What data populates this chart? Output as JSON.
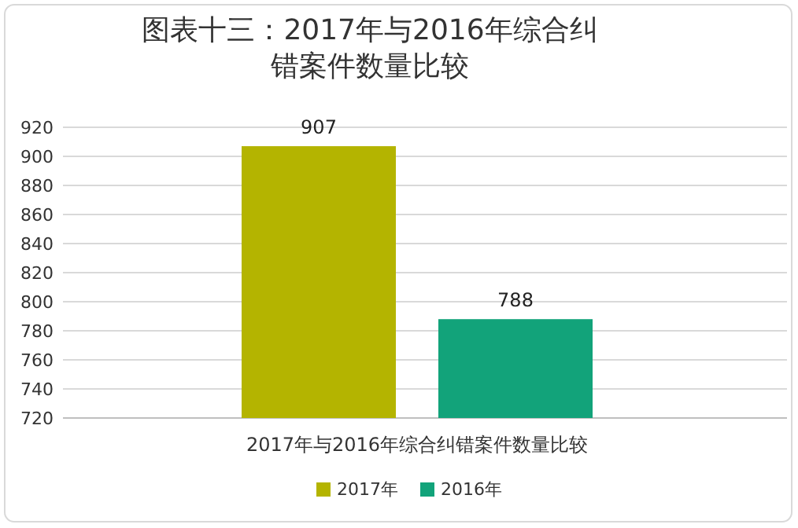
{
  "chart_data": {
    "type": "bar",
    "title": "图表十三：2017年与2016年综合纠错案件数量比较",
    "categories": [
      "2017年与2016年综合纠错案件数量比较"
    ],
    "series": [
      {
        "name": "2017年",
        "color": "#b4b400",
        "values": [
          907
        ]
      },
      {
        "name": "2016年",
        "color": "#12a37a",
        "values": [
          788
        ]
      }
    ],
    "ylim": [
      720,
      920
    ],
    "yticks": [
      720,
      740,
      760,
      780,
      800,
      820,
      840,
      860,
      880,
      900,
      920
    ],
    "grid": "y",
    "legend": "bottom",
    "data_labels": true
  }
}
